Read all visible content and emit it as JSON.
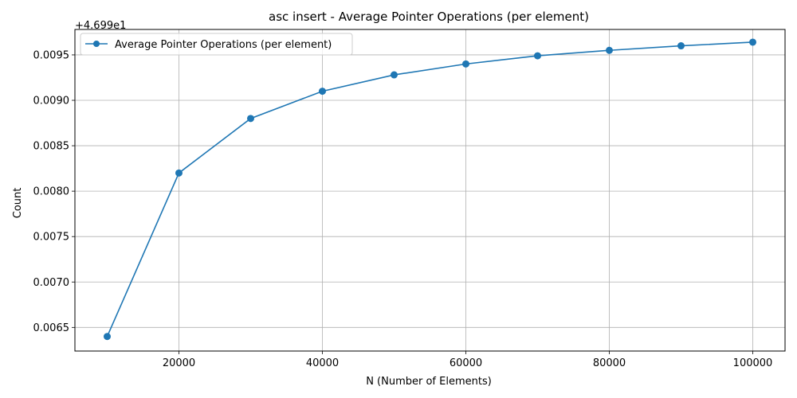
{
  "chart_data": {
    "type": "line",
    "title": "asc insert - Average Pointer Operations (per element)",
    "xlabel": "N (Number of Elements)",
    "ylabel": "Count",
    "offset_label": "+4.699e1",
    "offset": 46.99,
    "xlim": [
      5500,
      104500
    ],
    "ylim": [
      0.00624,
      0.00978
    ],
    "x_ticks": [
      20000,
      40000,
      60000,
      80000,
      100000
    ],
    "x_tick_labels": [
      "20000",
      "40000",
      "60000",
      "80000",
      "100000"
    ],
    "y_ticks": [
      0.0065,
      0.007,
      0.0075,
      0.008,
      0.0085,
      0.009,
      0.0095
    ],
    "y_tick_labels": [
      "0.0065",
      "0.0070",
      "0.0075",
      "0.0080",
      "0.0085",
      "0.0090",
      "0.0095"
    ],
    "grid": true,
    "legend_position": "top-left",
    "series": [
      {
        "name": "Average Pointer Operations (per element)",
        "color": "#1f77b4",
        "marker": "circle",
        "x": [
          10000,
          20000,
          30000,
          40000,
          50000,
          60000,
          70000,
          80000,
          90000,
          100000
        ],
        "values": [
          0.0064,
          0.0082,
          0.0088,
          0.0091,
          0.00928,
          0.0094,
          0.00949,
          0.00955,
          0.0096,
          0.00964
        ]
      }
    ]
  }
}
